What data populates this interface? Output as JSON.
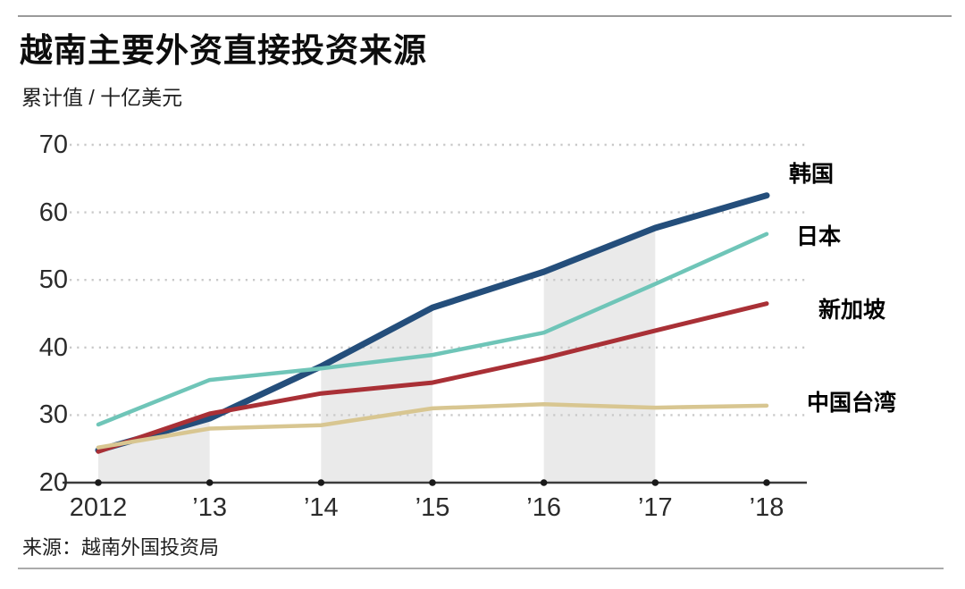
{
  "header": {
    "title": "越南主要外资直接投资来源",
    "subtitle": "累计值 / 十亿美元"
  },
  "footer": {
    "source": "来源：越南外国投资局"
  },
  "chart_data": {
    "type": "line",
    "title": "越南主要外资直接投资来源",
    "subtitle_unit": "累计值 / 十亿美元",
    "source": "来源：越南外国投资局",
    "x": [
      2012,
      2013,
      2014,
      2015,
      2016,
      2017,
      2018
    ],
    "x_tick_labels": [
      "2012",
      "’13",
      "’14",
      "’15",
      "’16",
      "’17",
      "’18"
    ],
    "y_ticks": [
      20,
      30,
      40,
      50,
      60,
      70
    ],
    "ylim": [
      20,
      70
    ],
    "grid": "horizontal dotted gridlines at 30-70, solid baseline at 20",
    "legend_position": "direct labels at right edge of lines",
    "shaded_bands_years": [
      [
        2012,
        2013
      ],
      [
        2014,
        2015
      ],
      [
        2016,
        2017
      ]
    ],
    "band_fill_under_series": "韩国",
    "series": [
      {
        "name": "韩国",
        "color": "#244e7b",
        "stroke_width": 7,
        "values": [
          24.8,
          29.5,
          37.2,
          45.9,
          51.2,
          57.7,
          62.5
        ]
      },
      {
        "name": "日本",
        "color": "#6fc5b8",
        "stroke_width": 4.5,
        "values": [
          28.6,
          35.2,
          36.9,
          38.9,
          42.2,
          49.4,
          56.8
        ]
      },
      {
        "name": "新加坡",
        "color": "#a93036",
        "stroke_width": 5,
        "values": [
          24.6,
          30.2,
          33.2,
          34.8,
          38.4,
          42.5,
          46.5
        ]
      },
      {
        "name": "中国台湾",
        "color": "#d8c691",
        "stroke_width": 4.5,
        "values": [
          25.2,
          28.0,
          28.5,
          31.0,
          31.6,
          31.1,
          31.4
        ]
      }
    ],
    "colors": {
      "band_fill": "#eaeaea",
      "gridline": "#c9c9c9",
      "axis": "#3c3c3c",
      "tick_dot": "#1a1a1a"
    }
  }
}
